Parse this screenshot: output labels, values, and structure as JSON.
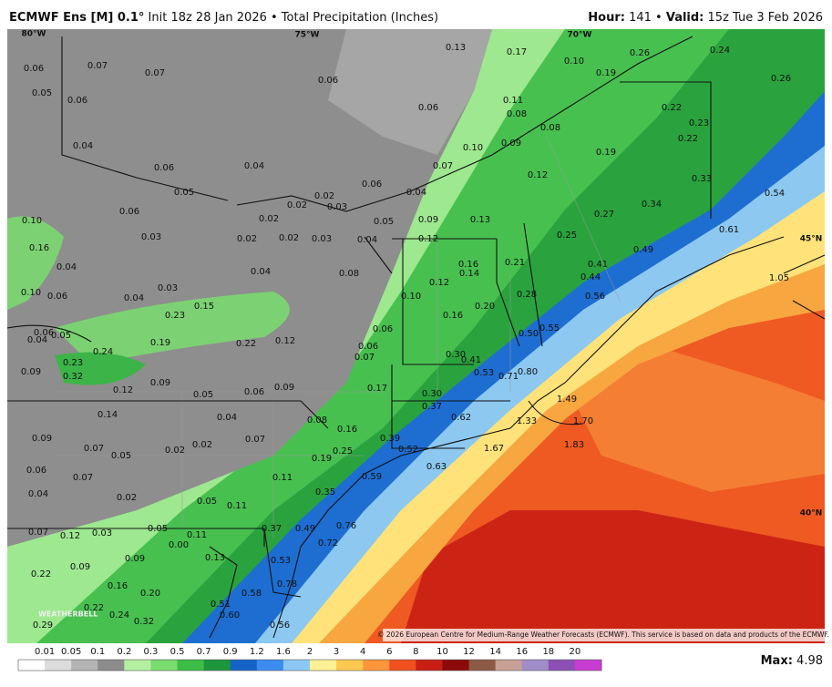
{
  "header": {
    "model": "ECMWF Ens [M] 0.1°",
    "run": " Init 18z 28 Jan 2026 • Total Precipitation (Inches)",
    "hour_label": "Hour:",
    "hour": " 141 • ",
    "valid_label": "Valid:",
    "valid": " 15z Tue 3 Feb 2026"
  },
  "geo_labels": [
    "80°W",
    "75°W",
    "70°W",
    "45°N",
    "40°N"
  ],
  "map_labels": [
    "0.13",
    "0.17",
    "0.10",
    "0.26",
    "0.24",
    "0.19",
    "0.26",
    "0.06",
    "0.07",
    "0.07",
    "0.06",
    "0.05",
    "0.06",
    "0.06",
    "0.11",
    "0.08",
    "0.22",
    "0.23",
    "0.08",
    "0.22",
    "0.04",
    "0.10",
    "0.09",
    "0.19",
    "0.06",
    "0.04",
    "0.07",
    "0.12",
    "0.33",
    "0.05",
    "0.06",
    "0.04",
    "0.02",
    "0.54",
    "0.06",
    "0.02",
    "0.03",
    "0.34",
    "0.10",
    "0.02",
    "0.05",
    "0.09",
    "0.13",
    "0.27",
    "0.03",
    "0.02",
    "0.02",
    "0.03",
    "0.04",
    "0.12",
    "0.25",
    "0.61",
    "0.49",
    "0.16",
    "0.16",
    "0.14",
    "0.21",
    "0.41",
    "0.44",
    "0.04",
    "0.04",
    "0.08",
    "0.12",
    "1.05",
    "0.10",
    "0.06",
    "0.04",
    "0.03",
    "0.15",
    "0.10",
    "0.28",
    "0.56",
    "0.20",
    "0.23",
    "0.16",
    "0.55",
    "0.06",
    "0.05",
    "0.04",
    "0.19",
    "0.22",
    "0.12",
    "0.06",
    "0.50",
    "0.24",
    "0.06",
    "0.07",
    "0.30",
    "0.41",
    "0.23",
    "0.09",
    "0.32",
    "0.53",
    "0.71",
    "0.80",
    "0.17",
    "0.12",
    "0.09",
    "0.05",
    "0.06",
    "0.09",
    "0.30",
    "1.49",
    "0.37",
    "0.14",
    "0.04",
    "0.08",
    "0.62",
    "1.33",
    "1.70",
    "0.16",
    "0.39",
    "0.09",
    "0.07",
    "1.67",
    "1.83",
    "0.07",
    "0.02",
    "0.02",
    "0.25",
    "0.52",
    "0.05",
    "0.19",
    "0.06",
    "0.63",
    "0.59",
    "0.07",
    "0.11",
    "0.04",
    "0.35",
    "0.02",
    "0.05",
    "0.11",
    "0.07",
    "0.12",
    "0.03",
    "0.05",
    "0.11",
    "0.49",
    "0.76",
    "0.37",
    "0.09",
    "0.00",
    "0.72",
    "0.13",
    "0.53",
    "0.22",
    "0.09",
    "0.78",
    "0.16",
    "0.20",
    "0.58",
    "0.22",
    "0.51",
    "0.24",
    "0.60",
    "0.32",
    "0.29",
    "0.56"
  ],
  "logo": "WEATHERBELL",
  "copyright": "© 2026 European Centre for Medium-Range Weather Forecasts (ECMWF). This service is based on data and products of the ECMWF.",
  "colorbar": {
    "labels": [
      "0.01",
      "0.05",
      "0.1",
      "0.2",
      "0.3",
      "0.5",
      "0.7",
      "0.9",
      "1.2",
      "1.6",
      "2",
      "3",
      "4",
      "6",
      "8",
      "10",
      "12",
      "14",
      "16",
      "18",
      "20"
    ],
    "colors": [
      "#ffffff",
      "#dcdcdc",
      "#b4b4b4",
      "#8c8c8c",
      "#b4f0a0",
      "#78dc6e",
      "#3cbe46",
      "#1e963c",
      "#1464c8",
      "#3c8cf0",
      "#8cc8f5",
      "#fff096",
      "#ffc850",
      "#ff963c",
      "#f0501e",
      "#c81e14",
      "#8c0a0a",
      "#8c5a46",
      "#c8a096",
      "#a08cc8",
      "#8c50b4",
      "#c83cd2"
    ]
  },
  "max_label": "Max:",
  "max_value": " 4.98"
}
